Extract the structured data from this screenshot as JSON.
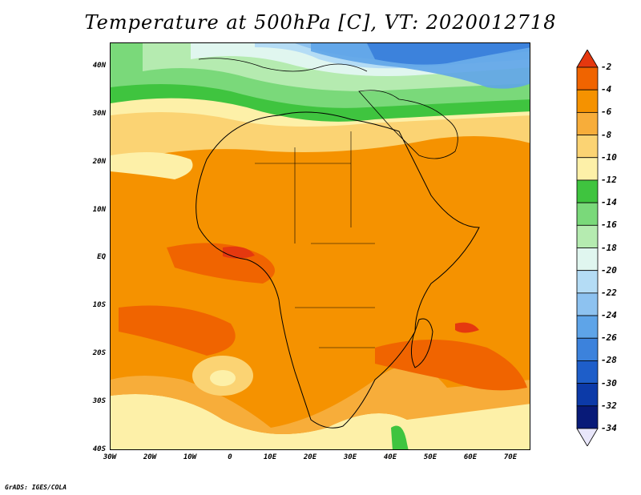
{
  "title": "Temperature at 500hPa [C], VT: 2020012718",
  "credit": "GrADS: IGES/COLA",
  "map": {
    "projection": "latlon",
    "lon_range": [
      -30,
      75
    ],
    "lat_range": [
      -40,
      45
    ],
    "lat_labels": [
      {
        "lat": 40,
        "text": "40N"
      },
      {
        "lat": 30,
        "text": "30N"
      },
      {
        "lat": 20,
        "text": "20N"
      },
      {
        "lat": 10,
        "text": "10N"
      },
      {
        "lat": 0,
        "text": "EQ"
      },
      {
        "lat": -10,
        "text": "10S"
      },
      {
        "lat": -20,
        "text": "20S"
      },
      {
        "lat": -30,
        "text": "30S"
      },
      {
        "lat": -40,
        "text": "40S"
      }
    ],
    "lon_labels": [
      {
        "lon": -30,
        "text": "30W"
      },
      {
        "lon": -20,
        "text": "20W"
      },
      {
        "lon": -10,
        "text": "10W"
      },
      {
        "lon": 0,
        "text": "0"
      },
      {
        "lon": 10,
        "text": "10E"
      },
      {
        "lon": 20,
        "text": "20E"
      },
      {
        "lon": 30,
        "text": "30E"
      },
      {
        "lon": 40,
        "text": "40E"
      },
      {
        "lon": 50,
        "text": "50E"
      },
      {
        "lon": 60,
        "text": "60E"
      },
      {
        "lon": 70,
        "text": "70E"
      }
    ]
  },
  "colorbar": {
    "levels": [
      "-2",
      "-4",
      "-6",
      "-8",
      "-10",
      "-12",
      "-14",
      "-16",
      "-18",
      "-20",
      "-22",
      "-24",
      "-26",
      "-28",
      "-30",
      "-32",
      "-34"
    ],
    "colors": [
      "#e5380f",
      "#f06400",
      "#f59200",
      "#f7ad3a",
      "#fbd373",
      "#fdf0a8",
      "#3fc43f",
      "#7ad97a",
      "#b5ebb0",
      "#e0f6ef",
      "#b4dcf5",
      "#8dc2f0",
      "#5ea4e8",
      "#3c82dc",
      "#1e5ec9",
      "#0c3aa8",
      "#081a78",
      "#e8e6fa"
    ]
  },
  "field_colors": {
    "warmest": "#e5380f",
    "very_warm": "#f06400",
    "warm": "#f59200",
    "mild": "#f7ad3a",
    "cool": "#fbd373",
    "cooler": "#fdf0a8",
    "green_dark": "#3fc43f",
    "green": "#7ad97a",
    "green_light": "#b5ebb0",
    "ice": "#e0f6ef",
    "blue_light": "#b4dcf5",
    "blue": "#8dc2f0",
    "blue_mid": "#5ea4e8",
    "blue_dark": "#3c82dc"
  }
}
